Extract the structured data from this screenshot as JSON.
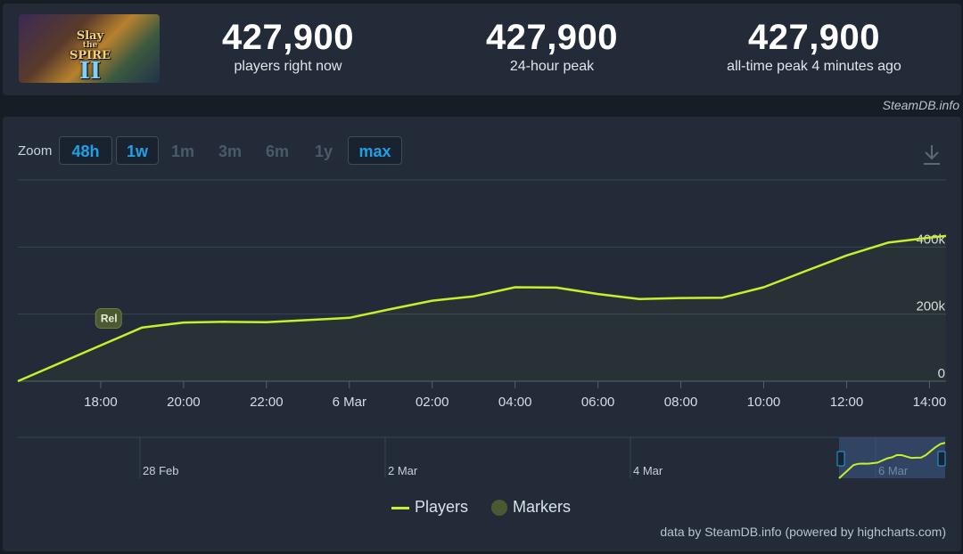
{
  "game": {
    "image_icon": "slay-the-spire-2-capsule",
    "logo_line1": "Slay",
    "logo_line2": "the",
    "logo_line3": "SPIRE",
    "logo_numeral": "II"
  },
  "stats": [
    {
      "value": "427,900",
      "label": "players right now"
    },
    {
      "value": "427,900",
      "label": "24-hour peak"
    },
    {
      "value": "427,900",
      "label": "all-time peak 4 minutes ago"
    }
  ],
  "credit_top": "SteamDB.info",
  "zoom": {
    "label": "Zoom",
    "buttons": [
      {
        "label": "48h",
        "active": true
      },
      {
        "label": "1w",
        "active": true
      },
      {
        "label": "1m",
        "active": false
      },
      {
        "label": "3m",
        "active": false
      },
      {
        "label": "6m",
        "active": false
      },
      {
        "label": "1y",
        "active": false
      },
      {
        "label": "max",
        "active": true
      }
    ]
  },
  "download_icon": "download-icon",
  "chart_data": {
    "type": "line",
    "title": "",
    "xlabel": "",
    "ylabel": "",
    "x_ticks": [
      "18:00",
      "20:00",
      "22:00",
      "6 Mar",
      "02:00",
      "04:00",
      "06:00",
      "08:00",
      "10:00",
      "12:00",
      "14:00"
    ],
    "y_ticks": [
      "0",
      "200k",
      "400k"
    ],
    "ylim": [
      0,
      600000
    ],
    "x_unit": "hours since 16:00, 5 Mar",
    "series": [
      {
        "name": "Players",
        "color": "#c6f02c",
        "x": [
          0,
          3,
          4,
          5,
          6,
          8,
          9,
          10,
          11,
          12,
          13,
          14,
          15,
          16,
          17,
          18,
          19,
          20,
          21,
          22
        ],
        "values": [
          0,
          160000,
          175000,
          177000,
          176000,
          189000,
          215000,
          240000,
          253000,
          280000,
          279000,
          260000,
          245000,
          248000,
          249000,
          280000,
          328000,
          375000,
          413000,
          427900
        ]
      }
    ],
    "markers": [
      {
        "label": "Rel",
        "x": 2.2
      }
    ],
    "navigator": {
      "labels": [
        "28 Feb",
        "2 Mar",
        "4 Mar",
        "6 Mar"
      ]
    },
    "legend": [
      "Players",
      "Markers"
    ],
    "legend_position": "bottom-center",
    "grid": true
  },
  "credit_bottom": "data by SteamDB.info (powered by highcharts.com)"
}
